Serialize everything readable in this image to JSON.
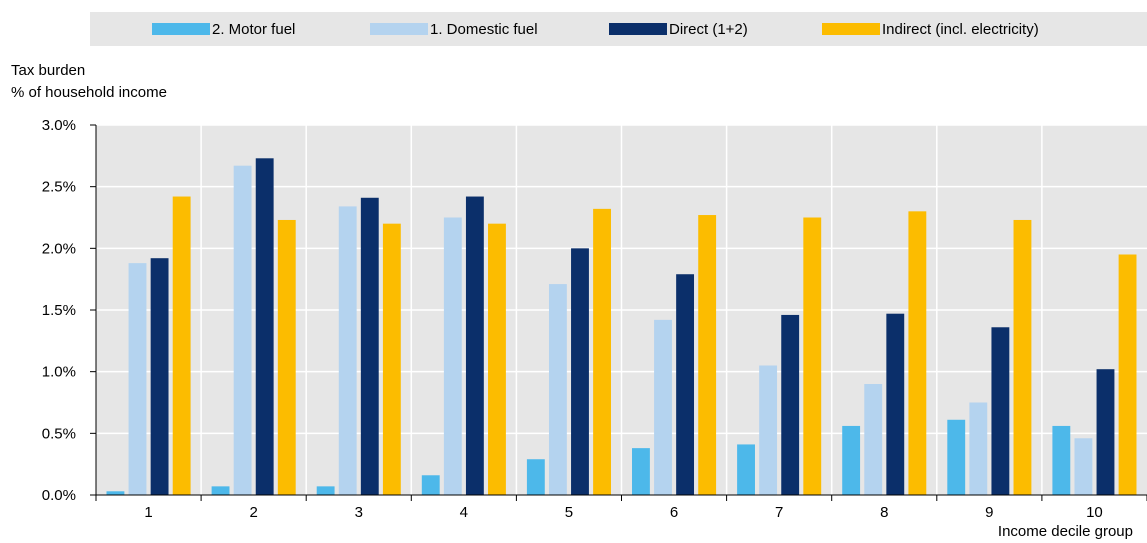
{
  "chart_data": {
    "type": "bar",
    "ylabel": "Tax burden",
    "ylabel_unit": "% of household income",
    "xlabel": "Income decile group",
    "categories": [
      "1",
      "2",
      "3",
      "4",
      "5",
      "6",
      "7",
      "8",
      "9",
      "10"
    ],
    "yticks": [
      "0.0%",
      "0.5%",
      "1.0%",
      "1.5%",
      "2.0%",
      "2.5%",
      "3.0%"
    ],
    "ylim": [
      0,
      3.0
    ],
    "grid": true,
    "legend_position": "top",
    "series": [
      {
        "name": "2. Motor fuel",
        "color": "#4db8ea",
        "values": [
          0.03,
          0.07,
          0.07,
          0.16,
          0.29,
          0.38,
          0.41,
          0.56,
          0.61,
          0.56
        ]
      },
      {
        "name": "1. Domestic fuel",
        "color": "#b4d3ef",
        "values": [
          1.88,
          2.67,
          2.34,
          2.25,
          1.71,
          1.42,
          1.05,
          0.9,
          0.75,
          0.46
        ]
      },
      {
        "name": "Direct (1+2)",
        "color": "#0b2f6a",
        "values": [
          1.92,
          2.73,
          2.41,
          2.42,
          2.0,
          1.79,
          1.46,
          1.47,
          1.36,
          1.02
        ]
      },
      {
        "name": "Indirect (incl. electricity)",
        "color": "#fcbc00",
        "values": [
          2.42,
          2.23,
          2.2,
          2.2,
          2.32,
          2.27,
          2.25,
          2.3,
          2.23,
          1.95
        ]
      }
    ]
  }
}
